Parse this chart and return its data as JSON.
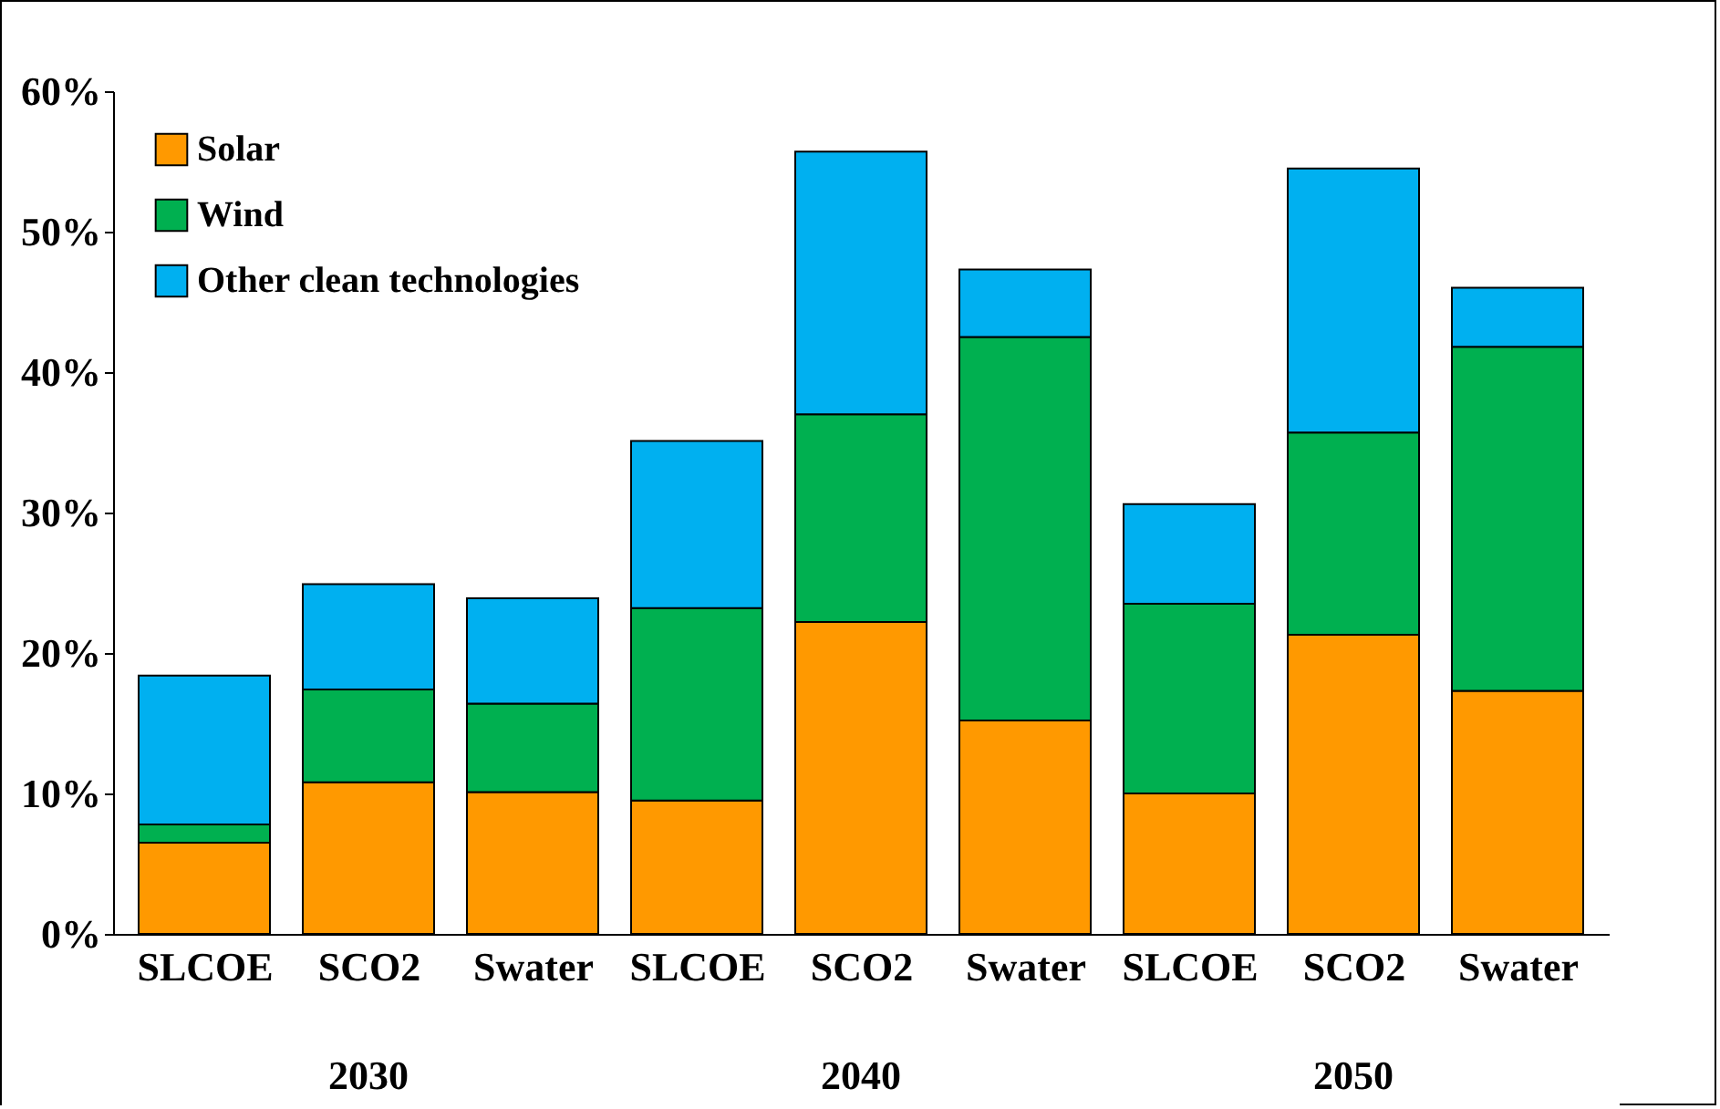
{
  "chart_data": {
    "type": "bar",
    "stacked": true,
    "categories": [
      "SLCOE",
      "SCO2",
      "Swater",
      "SLCOE",
      "SCO2",
      "Swater",
      "SLCOE",
      "SCO2",
      "Swater"
    ],
    "annotations": [
      "2030",
      "2040",
      "2050"
    ],
    "series": [
      {
        "name": "Solar",
        "color": "#ff9900",
        "values": [
          6.5,
          10.8,
          10.1,
          9.5,
          22.2,
          15.2,
          10.0,
          21.3,
          17.3
        ]
      },
      {
        "name": "Wind",
        "color": "#00b050",
        "values": [
          1.3,
          6.6,
          6.3,
          13.7,
          14.8,
          27.3,
          13.5,
          14.4,
          24.5
        ]
      },
      {
        "name": "Other clean technologies",
        "color": "#00b0f0",
        "values": [
          10.6,
          7.5,
          7.5,
          11.9,
          18.7,
          4.8,
          7.1,
          18.8,
          4.2
        ]
      }
    ],
    "ylim": [
      0,
      60
    ],
    "yticks": [
      {
        "value": 0,
        "label": "0%"
      },
      {
        "value": 10,
        "label": "10%"
      },
      {
        "value": 20,
        "label": "20%"
      },
      {
        "value": 30,
        "label": "30%"
      },
      {
        "value": 40,
        "label": "40%"
      },
      {
        "value": 50,
        "label": "50%"
      },
      {
        "value": 60,
        "label": "60%"
      }
    ],
    "legend": "top left",
    "grid": false
  }
}
